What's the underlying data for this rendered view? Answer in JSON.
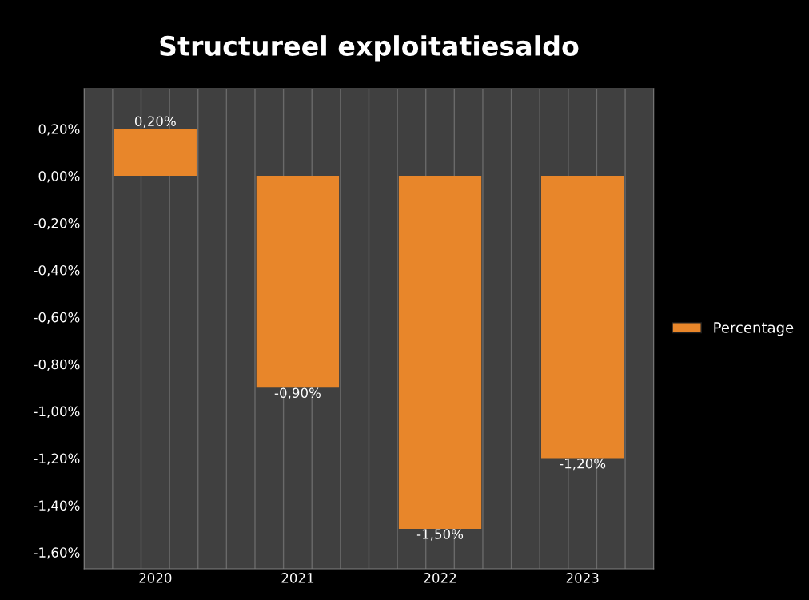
{
  "chart_data": {
    "type": "bar",
    "title": "Structureel exploitatiesaldo",
    "categories": [
      "2020",
      "2021",
      "2022",
      "2023"
    ],
    "series": [
      {
        "name": "Percentage",
        "color": "#e8862a",
        "values": [
          0.2,
          -0.9,
          -1.5,
          -1.2
        ],
        "value_labels": [
          "0,20%",
          "-0,90%",
          "-1,50%",
          "-1,20%"
        ]
      }
    ],
    "ylim": [
      -1.67,
      0.37
    ],
    "yticks": [
      {
        "value": 0.2,
        "label": "0,20%"
      },
      {
        "value": 0,
        "label": "0,00%"
      },
      {
        "value": -0.2,
        "label": "-0,20%"
      },
      {
        "value": -0.4,
        "label": "-0,40%"
      },
      {
        "value": -0.6,
        "label": "-0,60%"
      },
      {
        "value": -0.8,
        "label": "-0,80%"
      },
      {
        "value": -1.0,
        "label": "-1,00%"
      },
      {
        "value": -1.2,
        "label": "-1,20%"
      },
      {
        "value": -1.4,
        "label": "-1,40%"
      },
      {
        "value": -1.6,
        "label": "-1,60%"
      }
    ],
    "grid": "x",
    "legend": "right"
  }
}
